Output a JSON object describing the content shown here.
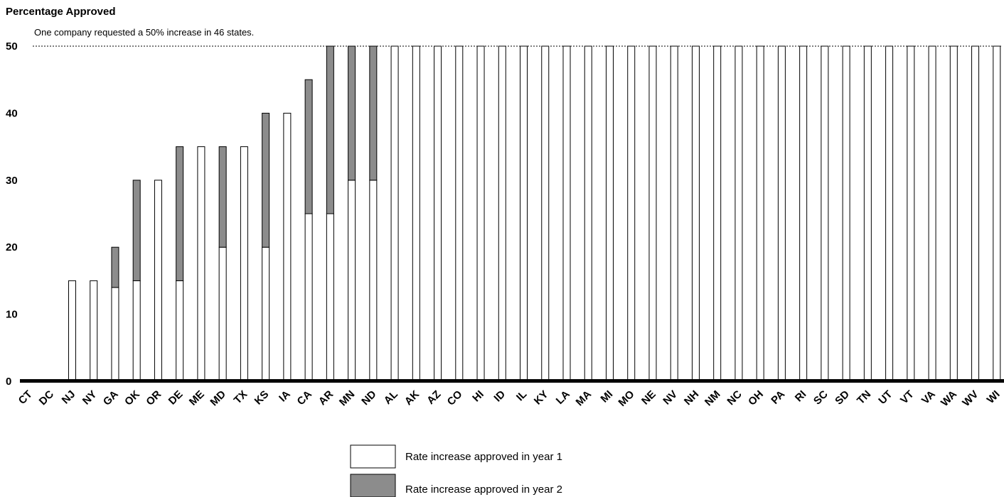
{
  "chart_data": {
    "type": "bar",
    "stacked": true,
    "ylabel": "Percentage Approved",
    "xlabel": "",
    "annotation": "One company requested a 50% increase in 46 states.",
    "reference_line": 50,
    "ylim": [
      0,
      50
    ],
    "yticks": [
      "0",
      "10",
      "20",
      "30",
      "40",
      "50"
    ],
    "grid": false,
    "legend_position": "bottom-center",
    "categories": [
      "CT",
      "DC",
      "NJ",
      "NY",
      "GA",
      "OK",
      "OR",
      "DE",
      "ME",
      "MD",
      "TX",
      "KS",
      "IA",
      "CA",
      "AR",
      "MN",
      "ND",
      "AL",
      "AK",
      "AZ",
      "CO",
      "HI",
      "ID",
      "IL",
      "KY",
      "LA",
      "MA",
      "MI",
      "MO",
      "NE",
      "NV",
      "NH",
      "NM",
      "NC",
      "OH",
      "PA",
      "RI",
      "SC",
      "SD",
      "TN",
      "UT",
      "VT",
      "VA",
      "WA",
      "WV",
      "WI"
    ],
    "series": [
      {
        "name": "Rate increase approved in year 1",
        "color": "#ffffff",
        "values": [
          0,
          0,
          15,
          15,
          14,
          15,
          30,
          15,
          35,
          20,
          35,
          20,
          40,
          25,
          25,
          30,
          30,
          50,
          50,
          50,
          50,
          50,
          50,
          50,
          50,
          50,
          50,
          50,
          50,
          50,
          50,
          50,
          50,
          50,
          50,
          50,
          50,
          50,
          50,
          50,
          50,
          50,
          50,
          50,
          50,
          50
        ]
      },
      {
        "name": "Rate increase approved in year 2",
        "color": "#8c8c8c",
        "values": [
          0,
          0,
          0,
          0,
          6,
          15,
          0,
          20,
          0,
          15,
          0,
          20,
          0,
          20,
          25,
          20,
          20,
          0,
          0,
          0,
          0,
          0,
          0,
          0,
          0,
          0,
          0,
          0,
          0,
          0,
          0,
          0,
          0,
          0,
          0,
          0,
          0,
          0,
          0,
          0,
          0,
          0,
          0,
          0,
          0,
          0
        ]
      }
    ]
  }
}
